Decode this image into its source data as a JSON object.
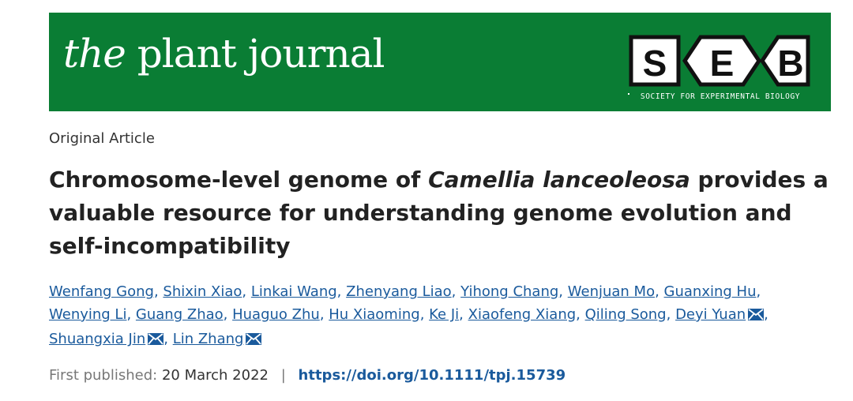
{
  "header": {
    "journal_the": "the",
    "journal_rest": "plant journal",
    "seb_letters": [
      "S",
      "E",
      "B"
    ],
    "seb_tagline": "SOCIETY FOR EXPERIMENTAL BIOLOGY",
    "banner_color": "#0a7d34"
  },
  "article": {
    "type": "Original Article",
    "title_part1": "Chromosome-level genome of ",
    "title_italic": "Camellia lanceoleosa",
    "title_part2": " provides a valuable resource for understanding genome evolution and self-incompatibility",
    "authors": [
      "Wenfang Gong",
      "Shixin Xiao",
      "Linkai Wang",
      "Zhenyang Liao",
      "Yihong Chang",
      "Wenjuan Mo",
      "Guanxing Hu",
      "Wenying Li",
      "Guang Zhao",
      "Huaguo Zhu",
      "Hu Xiaoming",
      "Ke Ji",
      "Xiaofeng Xiang",
      "Qiling Song",
      "Deyi Yuan",
      "Shuangxia Jin",
      "Lin Zhang"
    ],
    "corresponding_icon": "envelope-icon",
    "published_label": "First published:",
    "published_date": "20 March 2022",
    "separator": "|",
    "doi": "https://doi.org/10.1111/tpj.15739"
  }
}
